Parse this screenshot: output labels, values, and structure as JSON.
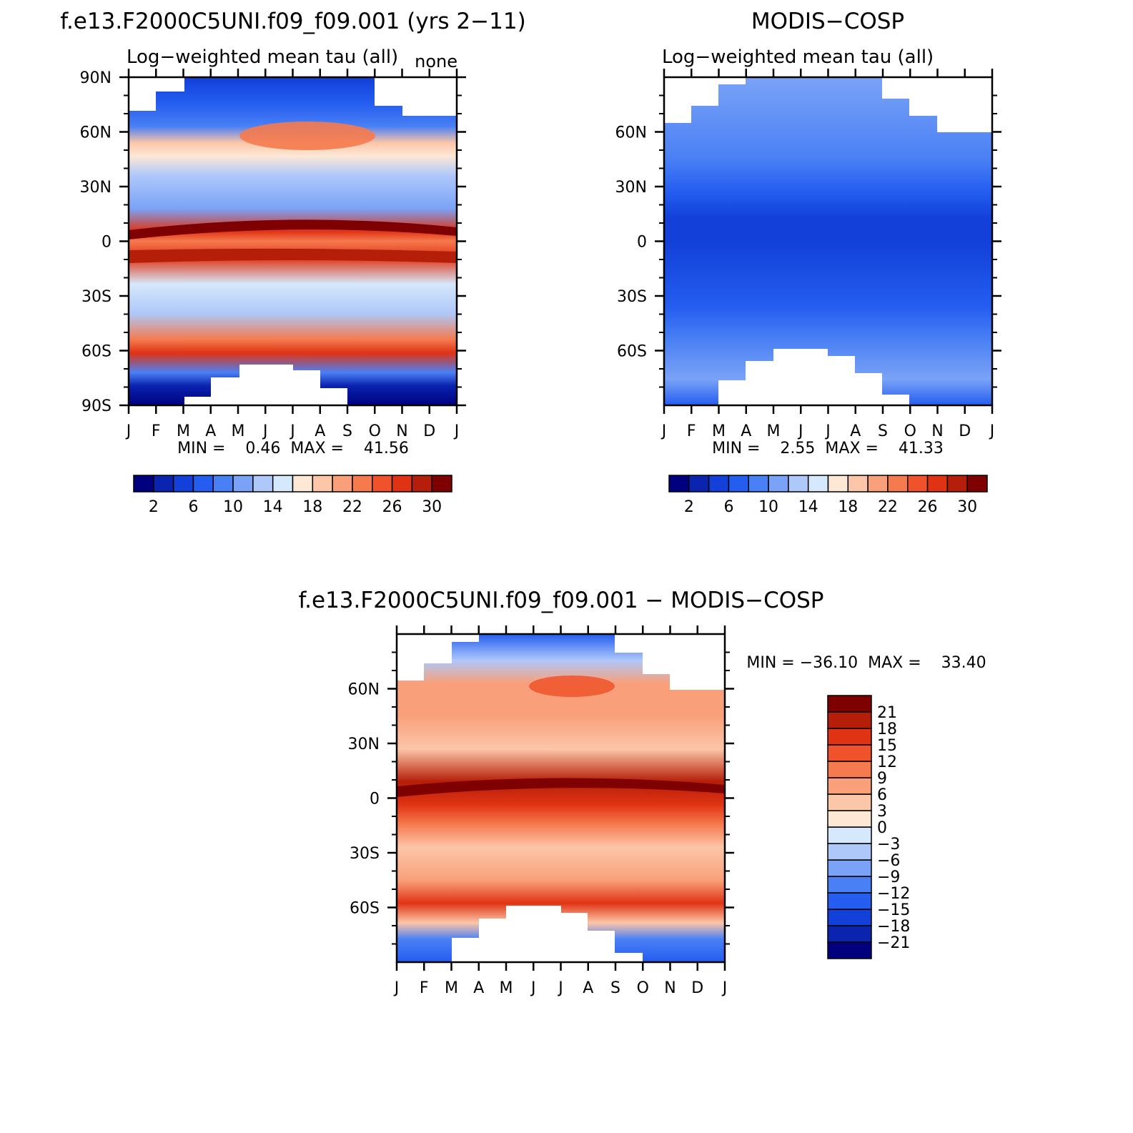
{
  "chart_data": [
    {
      "type": "heatmap",
      "panel": "model",
      "title": "f.e13.F2000C5UNI.f09_f09.001 (yrs 2−11)",
      "subtitle": "Log−weighted mean tau (all)",
      "units_label": "none",
      "x_tick_labels": [
        "J",
        "F",
        "M",
        "A",
        "M",
        "J",
        "J",
        "A",
        "S",
        "O",
        "N",
        "D",
        "J"
      ],
      "y_tick_labels": [
        "90N",
        "60N",
        "30N",
        "0",
        "30S",
        "60S",
        "90S"
      ],
      "stats_label": "MIN =    0.46  MAX =    41.56",
      "min": 0.46,
      "max": 41.56,
      "colorbar": {
        "orientation": "horizontal",
        "levels": [
          2,
          4,
          6,
          8,
          10,
          12,
          14,
          16,
          18,
          20,
          22,
          24,
          26,
          28,
          30,
          32
        ],
        "tick_labels": [
          "2",
          "6",
          "10",
          "14",
          "18",
          "22",
          "26",
          "30"
        ],
        "colors": [
          "#00007f",
          "#0a24b0",
          "#1240d8",
          "#245df0",
          "#4a80f5",
          "#7aa3f7",
          "#aec8fa",
          "#d6e8fb",
          "#fde8d6",
          "#fcc6a8",
          "#f9a07a",
          "#f57a4e",
          "#f0532c",
          "#e03314",
          "#b51e08",
          "#7e0000"
        ]
      },
      "regions": [
        {
          "lat_range": [
            62,
            90
          ],
          "value": 8,
          "description": "northern high latitudes blue"
        },
        {
          "lat_range": [
            35,
            62
          ],
          "value": 20,
          "description": "northern mid latitudes light red, strongest Jun-Aug near 60N"
        },
        {
          "lat_range": [
            8,
            35
          ],
          "value": 13,
          "description": "subtropics light blue"
        },
        {
          "lat_range": [
            -20,
            8
          ],
          "value": 28,
          "description": "tropical band dark red"
        },
        {
          "lat_range": [
            -45,
            -20
          ],
          "value": 14,
          "description": "southern subtropics light blue"
        },
        {
          "lat_range": [
            -68,
            -45
          ],
          "value": 25,
          "description": "southern mid latitudes red"
        },
        {
          "lat_range": [
            -90,
            -68
          ],
          "value": 2,
          "description": "Antarctic dark blue"
        }
      ]
    },
    {
      "type": "heatmap",
      "panel": "observations",
      "title": "MODIS−COSP",
      "subtitle": "Log−weighted mean tau (all)",
      "x_tick_labels": [
        "J",
        "F",
        "M",
        "A",
        "M",
        "J",
        "J",
        "A",
        "S",
        "O",
        "N",
        "D",
        "J"
      ],
      "y_tick_labels": [
        "60N",
        "30N",
        "0",
        "30S",
        "60S"
      ],
      "stats_label": "MIN =    2.55  MAX =    41.33",
      "min": 2.55,
      "max": 41.33,
      "colorbar": {
        "orientation": "horizontal",
        "levels": [
          2,
          4,
          6,
          8,
          10,
          12,
          14,
          16,
          18,
          20,
          22,
          24,
          26,
          28,
          30,
          32
        ],
        "tick_labels": [
          "2",
          "6",
          "10",
          "14",
          "18",
          "22",
          "26",
          "30"
        ],
        "colors": [
          "#00007f",
          "#0a24b0",
          "#1240d8",
          "#245df0",
          "#4a80f5",
          "#7aa3f7",
          "#aec8fa",
          "#d6e8fb",
          "#fde8d6",
          "#fcc6a8",
          "#f9a07a",
          "#f57a4e",
          "#f0532c",
          "#e03314",
          "#b51e08",
          "#7e0000"
        ]
      },
      "regions": [
        {
          "lat_range": [
            45,
            90
          ],
          "value": 10,
          "description": "northern high latitudes medium blue"
        },
        {
          "lat_range": [
            25,
            45
          ],
          "value": 10,
          "description": "northern mid latitudes medium blue"
        },
        {
          "lat_range": [
            5,
            25
          ],
          "value": 6,
          "description": "subtropics darker blue"
        },
        {
          "lat_range": [
            -40,
            5
          ],
          "value": 8,
          "description": "tropics and southern subtropics blue"
        },
        {
          "lat_range": [
            -90,
            -40
          ],
          "value": 11,
          "description": "southern high latitudes lighter blue"
        }
      ]
    },
    {
      "type": "heatmap",
      "panel": "difference",
      "title": "f.e13.F2000C5UNI.f09_f09.001 − MODIS−COSP",
      "x_tick_labels": [
        "J",
        "F",
        "M",
        "A",
        "M",
        "J",
        "J",
        "A",
        "S",
        "O",
        "N",
        "D",
        "J"
      ],
      "y_tick_labels": [
        "60N",
        "30N",
        "0",
        "30S",
        "60S"
      ],
      "stats_label": "MIN = −36.10  MAX =    33.40",
      "min": -36.1,
      "max": 33.4,
      "colorbar": {
        "orientation": "vertical",
        "levels": [
          -21,
          -18,
          -15,
          -12,
          -9,
          -6,
          -3,
          0,
          3,
          6,
          9,
          12,
          15,
          18,
          21
        ],
        "tick_labels": [
          "21",
          "18",
          "15",
          "12",
          "9",
          "6",
          "3",
          "0",
          "−3",
          "−6",
          "−9",
          "−12",
          "−15",
          "−18",
          "−21"
        ],
        "colors": [
          "#00007f",
          "#0a24b0",
          "#1240d8",
          "#245df0",
          "#4a80f5",
          "#7aa3f7",
          "#aec8fa",
          "#d6e8fb",
          "#fde8d6",
          "#fcc6a8",
          "#f9a07a",
          "#f57a4e",
          "#f0532c",
          "#e03314",
          "#b51e08",
          "#7e0000"
        ]
      },
      "regions": [
        {
          "lat_range": [
            62,
            90
          ],
          "value": -6,
          "description": "northern high latitudes blue"
        },
        {
          "lat_range": [
            35,
            62
          ],
          "value": 9,
          "description": "northern mid latitudes orange"
        },
        {
          "lat_range": [
            8,
            35
          ],
          "value": 6,
          "description": "subtropics light orange"
        },
        {
          "lat_range": [
            -20,
            8
          ],
          "value": 20,
          "description": "tropics dark red"
        },
        {
          "lat_range": [
            -45,
            -20
          ],
          "value": 6,
          "description": "southern subtropics light orange"
        },
        {
          "lat_range": [
            -68,
            -45
          ],
          "value": 15,
          "description": "southern mid latitudes red"
        },
        {
          "lat_range": [
            -90,
            -68
          ],
          "value": -10,
          "description": "Antarctic blue"
        }
      ]
    }
  ]
}
